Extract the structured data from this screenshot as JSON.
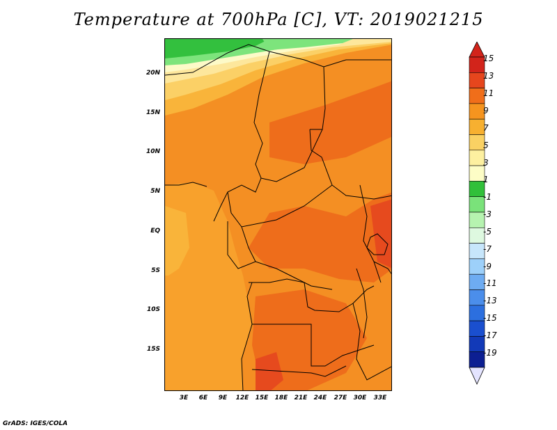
{
  "title": "Temperature at 700hPa [C], VT: 2019021215",
  "credit": "GrADS: IGES/COLA",
  "lat_ticks": [
    "20N",
    "15N",
    "10N",
    "5N",
    "EQ",
    "5S",
    "10S",
    "15S"
  ],
  "lon_ticks": [
    "3E",
    "6E",
    "9E",
    "12E",
    "15E",
    "18E",
    "21E",
    "24E",
    "27E",
    "30E",
    "33E"
  ],
  "colorbar": {
    "labels": [
      "15",
      "13",
      "11",
      "9",
      "7",
      "5",
      "3",
      "1",
      "-1",
      "-3",
      "-5",
      "-7",
      "-9",
      "-11",
      "-13",
      "-15",
      "-17",
      "-19"
    ],
    "colors": [
      "#d2241b",
      "#e6461d",
      "#f06e1a",
      "#f5941f",
      "#f7b030",
      "#fad163",
      "#fdf0a0",
      "#fdfdc6",
      "#31c03a",
      "#7ae27a",
      "#b6f3b0",
      "#def9e0",
      "#c7e6fb",
      "#9dd0fa",
      "#6eacf2",
      "#4b8eeb",
      "#2c6fdf",
      "#1a4fcf",
      "#123ab8",
      "#0c1f92"
    ],
    "top_arrow_color": "#d2241b",
    "bottom_arrow_color": "#e4e4ff"
  },
  "field_colors": {
    "ocean": "#f8a12c",
    "land": "#f48f23",
    "hot": "#ee6d1b",
    "hottest": "#e64a1e",
    "mild": "#f9b43a",
    "cool": "#fbd066",
    "cooler": "#fde79c",
    "pale": "#fdfac8",
    "green": "#33c03e",
    "lightgreen": "#7de47c",
    "border": "#000000"
  }
}
